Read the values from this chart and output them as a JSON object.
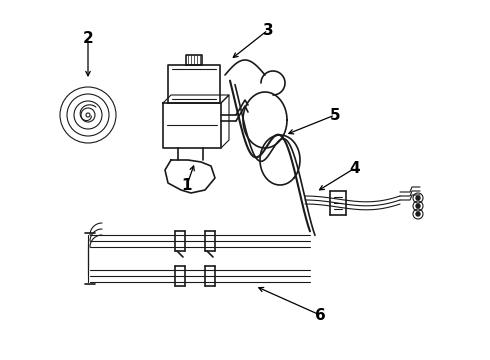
{
  "bg_color": "#ffffff",
  "line_color": "#1a1a1a",
  "label_color": "#000000",
  "figsize": [
    4.9,
    3.6
  ],
  "dpi": 100
}
